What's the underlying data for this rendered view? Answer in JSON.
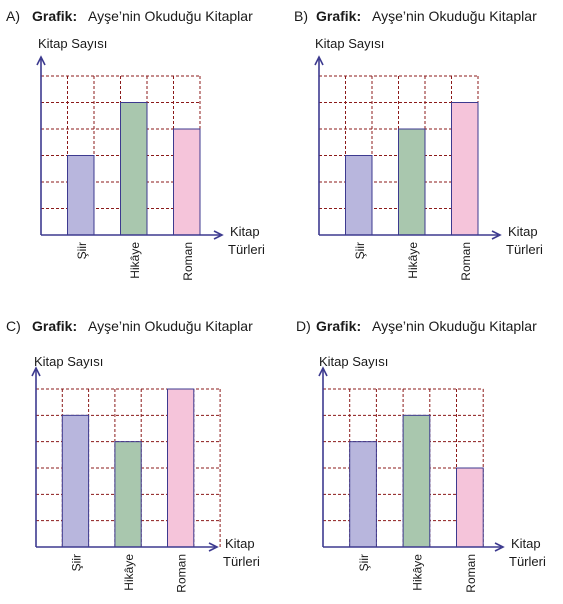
{
  "colors": {
    "axis": "#3d3a8f",
    "grid": "#8b1a1a",
    "bar_edge": "#3d3a8f",
    "siir": "#b8b6dd",
    "hikaye": "#a9c7ae",
    "roman": "#f5c4da"
  },
  "common": {
    "title_bold": "Grafik:",
    "title_rest": "Ayşe’nin Okuduğu Kitaplar",
    "ylabel": "Kitap Sayısı",
    "xlabel_line1": "Kitap",
    "xlabel_line2": "Türleri"
  },
  "chart_data": [
    {
      "option": "A)",
      "type": "bar",
      "categories": [
        "Şiir",
        "Hikâye",
        "Roman"
      ],
      "values": [
        3,
        5,
        4
      ],
      "ylim": [
        0,
        6
      ],
      "grid": true
    },
    {
      "option": "B)",
      "type": "bar",
      "categories": [
        "Şiir",
        "Hikâye",
        "Roman"
      ],
      "values": [
        3,
        4,
        5
      ],
      "ylim": [
        0,
        6
      ],
      "grid": true
    },
    {
      "option": "C)",
      "type": "bar",
      "categories": [
        "Şiir",
        "Hikâye",
        "Roman"
      ],
      "values": [
        5,
        4,
        6
      ],
      "ylim": [
        0,
        6
      ],
      "grid": true
    },
    {
      "option": "D)",
      "type": "bar",
      "categories": [
        "Şiir",
        "Hikâye",
        "Roman"
      ],
      "values": [
        4,
        5,
        3
      ],
      "ylim": [
        0,
        6
      ],
      "grid": true
    }
  ]
}
